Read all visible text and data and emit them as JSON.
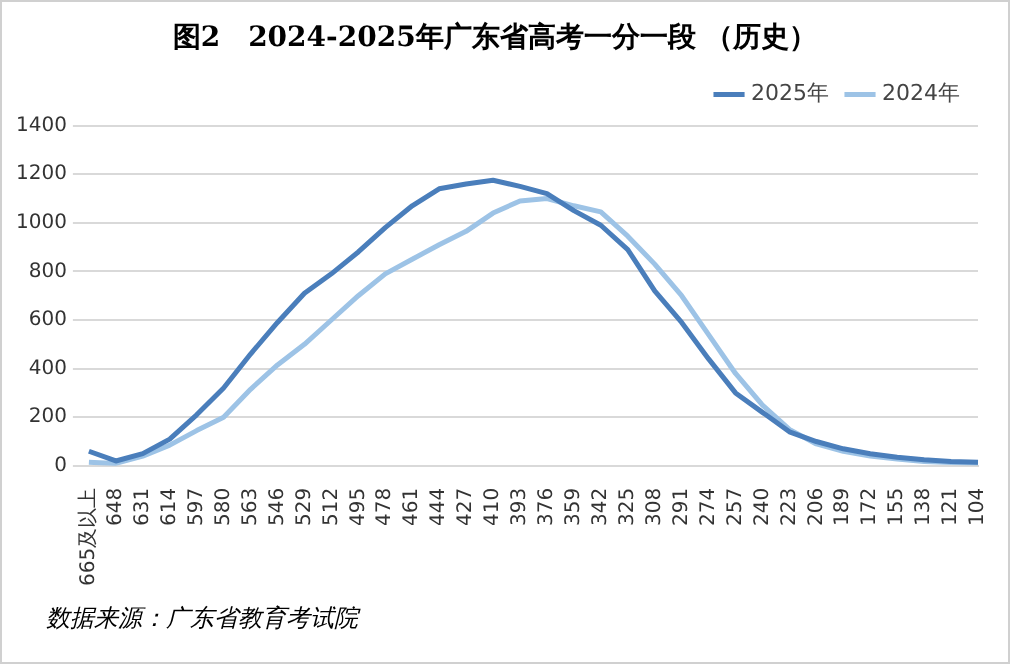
{
  "chart_data": {
    "type": "line",
    "title": "图2　2024-2025年广东省高考一分一段 （历史）",
    "categories": [
      "665及以上",
      "648",
      "631",
      "614",
      "597",
      "580",
      "563",
      "546",
      "529",
      "512",
      "495",
      "478",
      "461",
      "444",
      "427",
      "410",
      "393",
      "376",
      "359",
      "342",
      "325",
      "308",
      "291",
      "274",
      "257",
      "240",
      "223",
      "206",
      "189",
      "172",
      "155",
      "138",
      "121",
      "104"
    ],
    "series": [
      {
        "name": "2025年",
        "color": "#4a7ebb",
        "values": [
          60,
          20,
          50,
          110,
          210,
          320,
          460,
          590,
          710,
          790,
          880,
          980,
          1070,
          1140,
          1160,
          1175,
          1150,
          1120,
          1050,
          990,
          890,
          720,
          590,
          440,
          300,
          220,
          140,
          100,
          70,
          50,
          35,
          25,
          18,
          15
        ]
      },
      {
        "name": "2024年",
        "color": "#9dc3e6",
        "values": [
          15,
          10,
          40,
          85,
          145,
          200,
          315,
          415,
          500,
          600,
          700,
          790,
          850,
          910,
          965,
          1040,
          1090,
          1100,
          1070,
          1045,
          945,
          830,
          700,
          540,
          380,
          250,
          150,
          90,
          60,
          40,
          28,
          18,
          14,
          12
        ]
      }
    ],
    "ylim": [
      0,
      1400
    ],
    "yticks": [
      0,
      200,
      400,
      600,
      800,
      1000,
      1200,
      1400
    ],
    "grid": "y",
    "legend": "top right",
    "marker": "none",
    "line_style": "solid",
    "annotations": [
      "数据来源：广东省教育考试院"
    ]
  }
}
